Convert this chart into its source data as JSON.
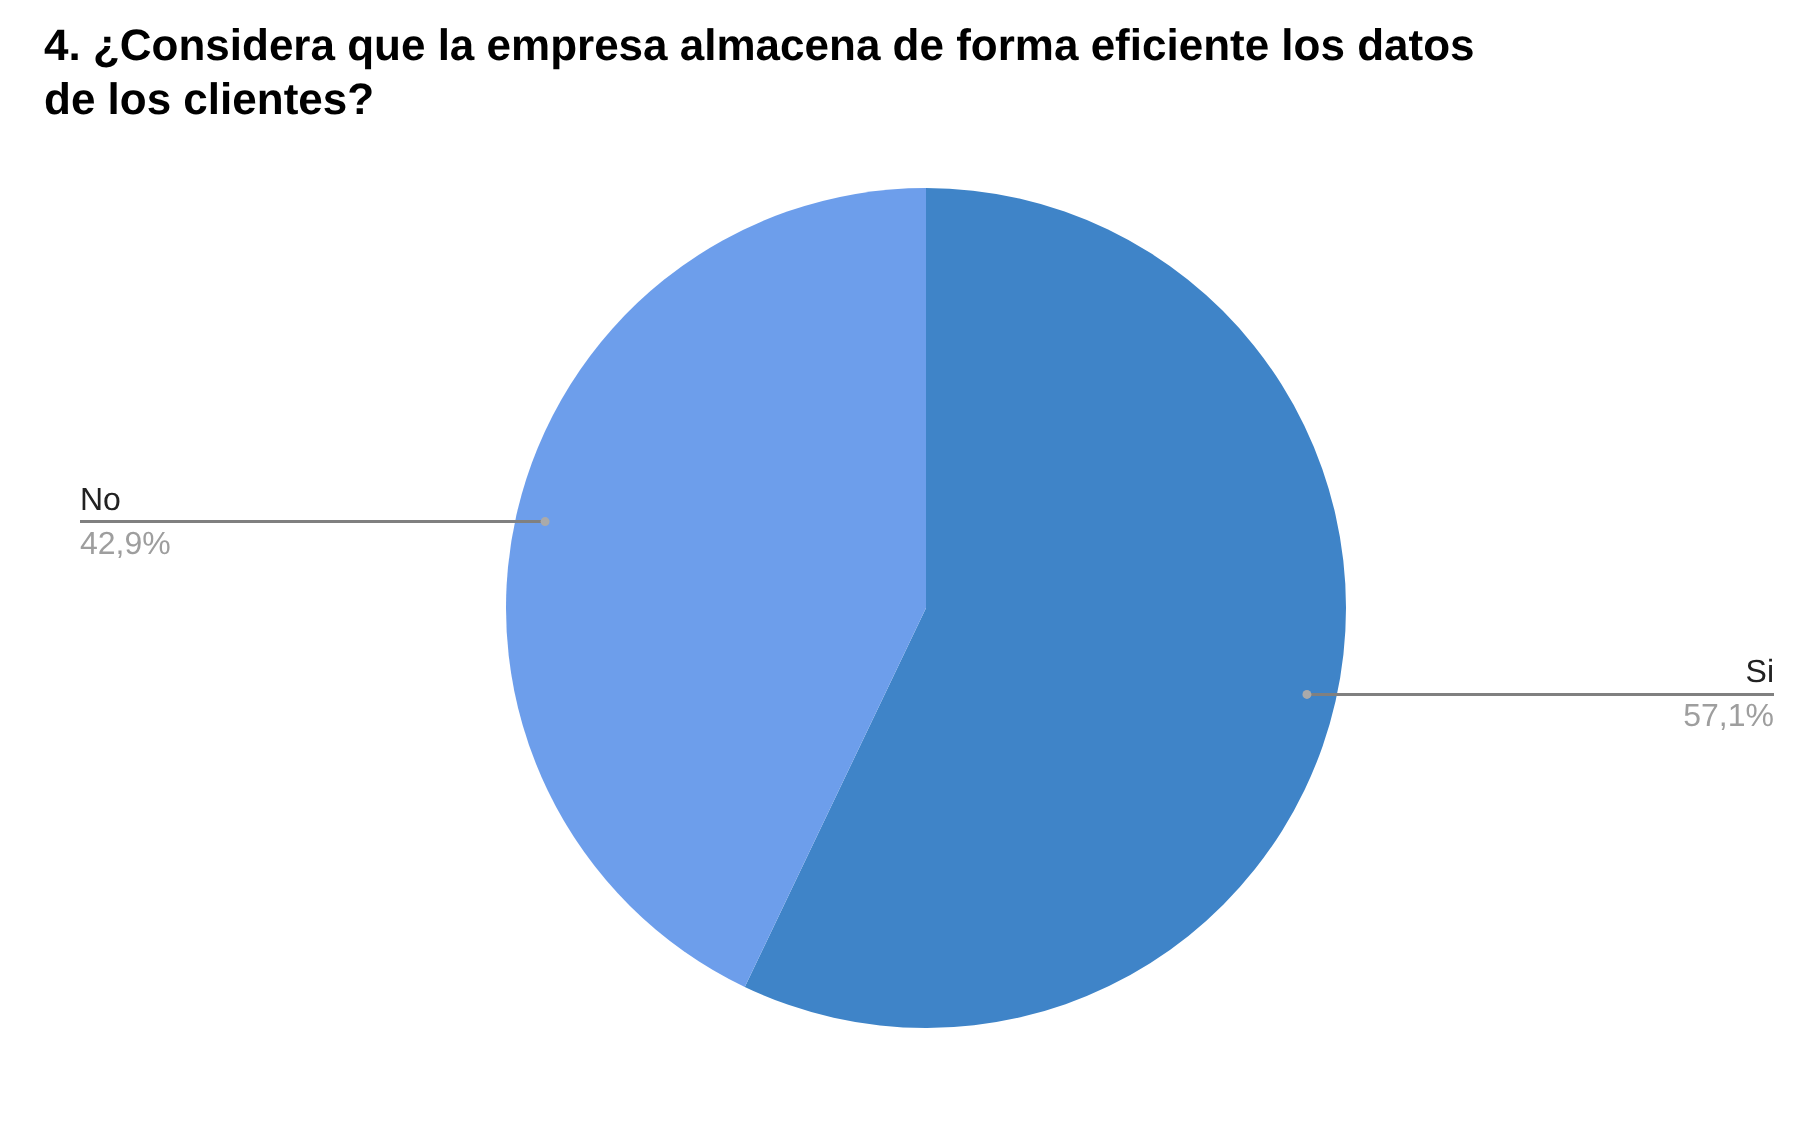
{
  "chart_data": {
    "type": "pie",
    "title": "4. ¿Considera que la empresa almacena de forma eficiente los datos de los clientes?",
    "categories": [
      "Si",
      "No"
    ],
    "values": [
      57.1,
      42.9
    ],
    "colors": [
      "#3f84c8",
      "#6d9eeb"
    ],
    "value_labels": [
      "57,1%",
      "42,9%"
    ],
    "legend": false
  }
}
